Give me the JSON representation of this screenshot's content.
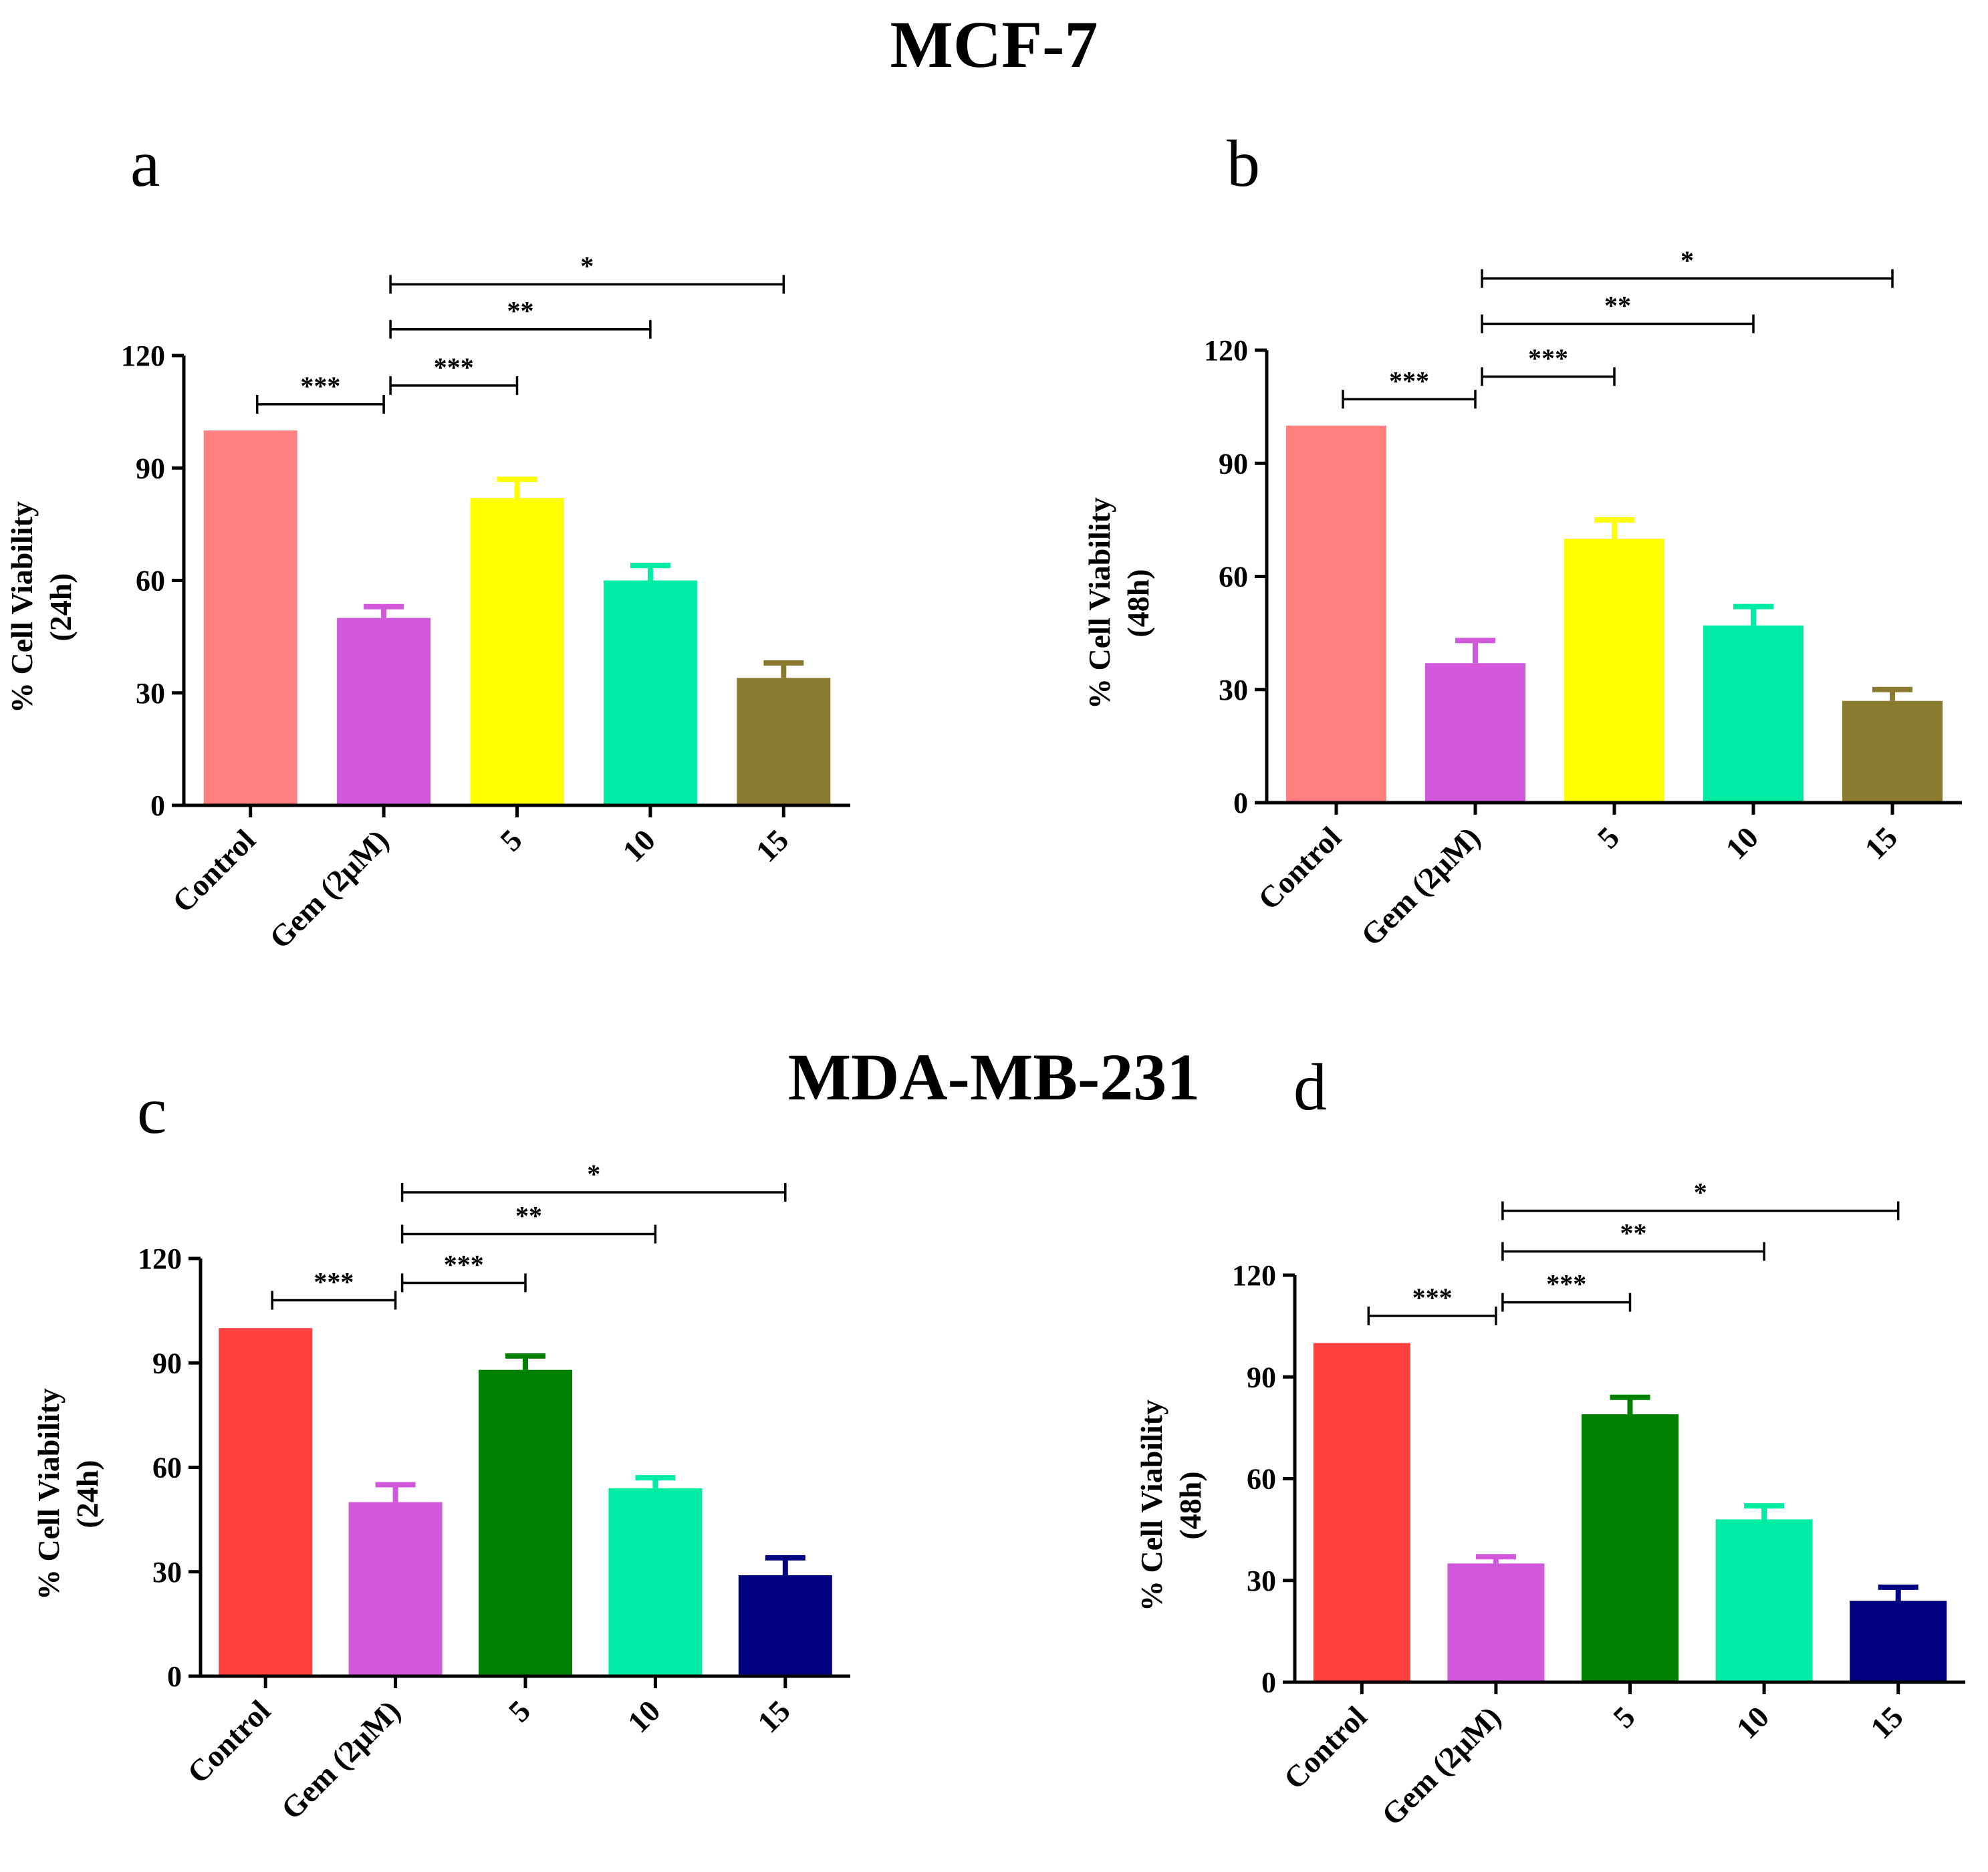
{
  "titles": {
    "top": "MCF-7",
    "bottom": "MDA-MB-231"
  },
  "chart_data": [
    {
      "panel": "a",
      "type": "bar",
      "ylabel": [
        "% Cell Viability",
        "(24h)"
      ],
      "ylim": [
        0,
        120
      ],
      "yticks": [
        "0",
        "30",
        "60",
        "90",
        "120"
      ],
      "categories": [
        "Control",
        "Gem (2μM)",
        "5",
        "10",
        "15"
      ],
      "values": [
        100,
        50,
        82,
        60,
        34
      ],
      "errors": [
        0,
        3,
        5,
        4,
        4
      ],
      "colors": [
        "#ff8080",
        "#d157db",
        "#ffff00",
        "#00eca5",
        "#8b7b2e"
      ],
      "significance": [
        {
          "from": 0,
          "to": 1,
          "label": "***",
          "y": 107
        },
        {
          "from": 1,
          "to": 2,
          "label": "***",
          "y": 112
        },
        {
          "from": 1,
          "to": 3,
          "label": "**",
          "y": 127
        },
        {
          "from": 1,
          "to": 4,
          "label": "*",
          "y": 139
        }
      ]
    },
    {
      "panel": "b",
      "type": "bar",
      "ylabel": [
        "% Cell Viability",
        "(48h)"
      ],
      "ylim": [
        0,
        120
      ],
      "yticks": [
        "0",
        "30",
        "60",
        "90",
        "120"
      ],
      "categories": [
        "Control",
        "Gem (2μM)",
        "5",
        "10",
        "15"
      ],
      "values": [
        100,
        37,
        70,
        47,
        27
      ],
      "errors": [
        0,
        6,
        5,
        5,
        3
      ],
      "colors": [
        "#ff8080",
        "#d157db",
        "#ffff00",
        "#00eca5",
        "#8b7b2e"
      ],
      "significance": [
        {
          "from": 0,
          "to": 1,
          "label": "***",
          "y": 107
        },
        {
          "from": 1,
          "to": 2,
          "label": "***",
          "y": 113
        },
        {
          "from": 1,
          "to": 3,
          "label": "**",
          "y": 127
        },
        {
          "from": 1,
          "to": 4,
          "label": "*",
          "y": 139
        }
      ]
    },
    {
      "panel": "c",
      "type": "bar",
      "ylabel": [
        "% Cell Viability",
        "(24h)"
      ],
      "ylim": [
        0,
        120
      ],
      "yticks": [
        "0",
        "30",
        "60",
        "90",
        "120"
      ],
      "categories": [
        "Control",
        "Gem (2μM)",
        "5",
        "10",
        "15"
      ],
      "values": [
        100,
        50,
        88,
        54,
        29
      ],
      "errors": [
        0,
        5,
        4,
        3,
        5
      ],
      "colors": [
        "#ff4040",
        "#d157db",
        "#008000",
        "#00eca5",
        "#000080"
      ],
      "significance": [
        {
          "from": 0,
          "to": 1,
          "label": "***",
          "y": 108
        },
        {
          "from": 1,
          "to": 2,
          "label": "***",
          "y": 113
        },
        {
          "from": 1,
          "to": 3,
          "label": "**",
          "y": 127
        },
        {
          "from": 1,
          "to": 4,
          "label": "*",
          "y": 139
        }
      ]
    },
    {
      "panel": "d",
      "type": "bar",
      "ylabel": [
        "% Cell Viability",
        "(48h)"
      ],
      "ylim": [
        0,
        120
      ],
      "yticks": [
        "0",
        "30",
        "60",
        "90",
        "120"
      ],
      "categories": [
        "Control",
        "Gem (2μM)",
        "5",
        "10",
        "15"
      ],
      "values": [
        100,
        35,
        79,
        48,
        24
      ],
      "errors": [
        0,
        2,
        5,
        4,
        4
      ],
      "colors": [
        "#ff4040",
        "#d157db",
        "#008000",
        "#00eca5",
        "#000080"
      ],
      "significance": [
        {
          "from": 0,
          "to": 1,
          "label": "***",
          "y": 108
        },
        {
          "from": 1,
          "to": 2,
          "label": "***",
          "y": 112
        },
        {
          "from": 1,
          "to": 3,
          "label": "**",
          "y": 127
        },
        {
          "from": 1,
          "to": 4,
          "label": "*",
          "y": 139
        }
      ]
    }
  ]
}
